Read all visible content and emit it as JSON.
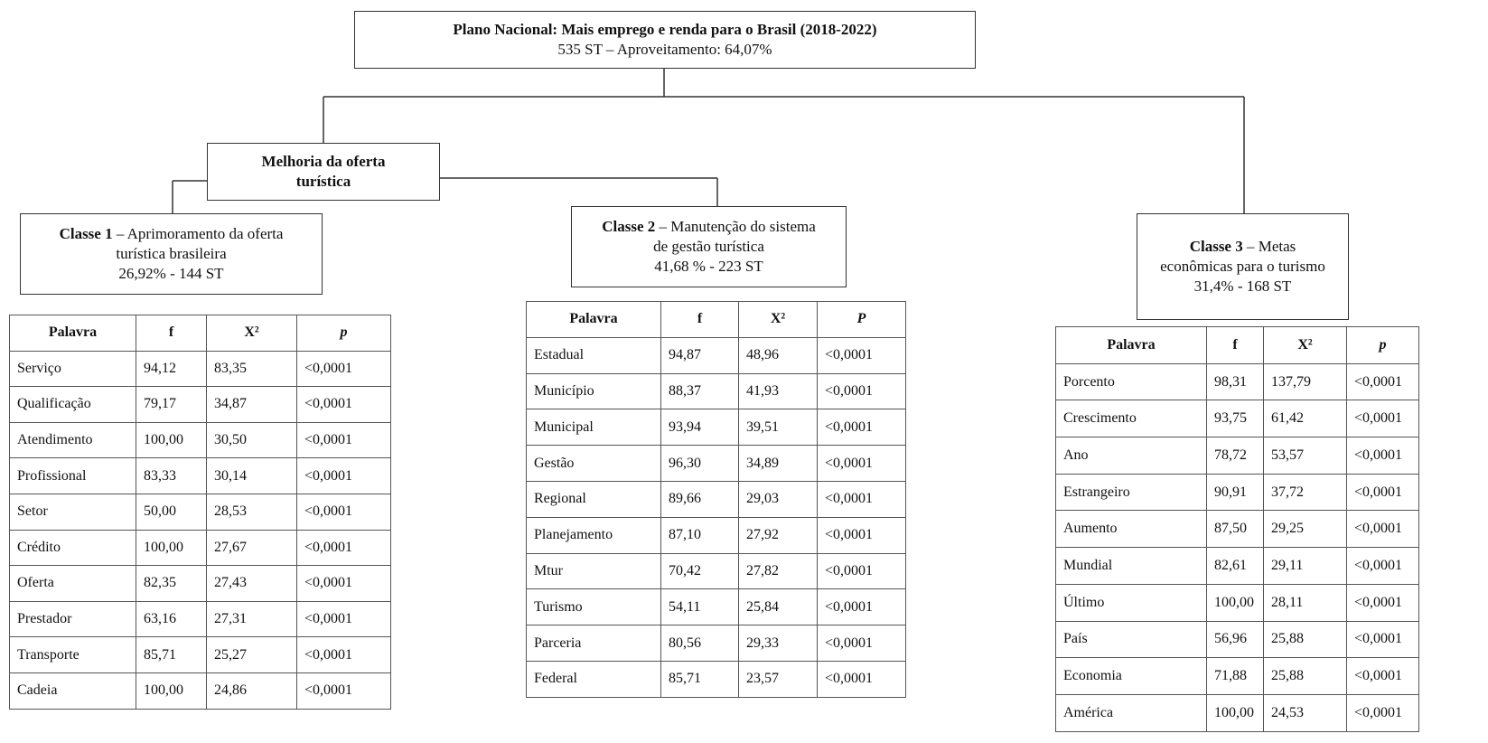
{
  "root": {
    "title": "Plano Nacional: Mais emprego e renda para o Brasil (2018-2022)",
    "subtitle": "535 ST – Aproveitamento: 64,07%"
  },
  "group": {
    "label": "Melhoria da oferta turística"
  },
  "classes": [
    {
      "name": "Classe 1",
      "description": " – Aprimoramento da oferta turística brasileira",
      "stats": "26,92% - 144 ST",
      "table": {
        "header": [
          "Palavra",
          "f",
          "X²",
          "p"
        ],
        "rows": [
          [
            "Serviço",
            "94,12",
            "83,35",
            "<0,0001"
          ],
          [
            "Qualificação",
            "79,17",
            "34,87",
            "<0,0001"
          ],
          [
            "Atendimento",
            "100,00",
            "30,50",
            "<0,0001"
          ],
          [
            "Profissional",
            "83,33",
            "30,14",
            "<0,0001"
          ],
          [
            "Setor",
            "50,00",
            "28,53",
            "<0,0001"
          ],
          [
            "Crédito",
            "100,00",
            "27,67",
            "<0,0001"
          ],
          [
            "Oferta",
            "82,35",
            "27,43",
            "<0,0001"
          ],
          [
            "Prestador",
            "63,16",
            "27,31",
            "<0,0001"
          ],
          [
            "Transporte",
            "85,71",
            "25,27",
            "<0,0001"
          ],
          [
            "Cadeia",
            "100,00",
            "24,86",
            "<0,0001"
          ]
        ]
      }
    },
    {
      "name": "Classe 2",
      "description": " – Manutenção do sistema de gestão turística",
      "stats": "41,68 % - 223 ST",
      "table": {
        "header": [
          "Palavra",
          "f",
          "X²",
          "P"
        ],
        "rows": [
          [
            "Estadual",
            "94,87",
            "48,96",
            "<0,0001"
          ],
          [
            "Município",
            "88,37",
            "41,93",
            "<0,0001"
          ],
          [
            "Municipal",
            "93,94",
            "39,51",
            "<0,0001"
          ],
          [
            "Gestão",
            "96,30",
            "34,89",
            "<0,0001"
          ],
          [
            "Regional",
            "89,66",
            "29,03",
            "<0,0001"
          ],
          [
            "Planejamento",
            "87,10",
            "27,92",
            "<0,0001"
          ],
          [
            "Mtur",
            "70,42",
            "27,82",
            "<0,0001"
          ],
          [
            "Turismo",
            "54,11",
            "25,84",
            "<0,0001"
          ],
          [
            "Parceria",
            "80,56",
            "29,33",
            "<0,0001"
          ],
          [
            "Federal",
            "85,71",
            "23,57",
            "<0,0001"
          ]
        ]
      }
    },
    {
      "name": "Classe 3",
      "description": " – Metas econômicas para o turismo",
      "stats": "31,4% - 168 ST",
      "table": {
        "header": [
          "Palavra",
          "f",
          "X²",
          "p"
        ],
        "rows": [
          [
            "Porcento",
            "98,31",
            "137,79",
            "<0,0001"
          ],
          [
            "Crescimento",
            "93,75",
            "61,42",
            "<0,0001"
          ],
          [
            "Ano",
            "78,72",
            "53,57",
            "<0,0001"
          ],
          [
            "Estrangeiro",
            "90,91",
            "37,72",
            "<0,0001"
          ],
          [
            "Aumento",
            "87,50",
            "29,25",
            "<0,0001"
          ],
          [
            "Mundial",
            "82,61",
            "29,11",
            "<0,0001"
          ],
          [
            "Último",
            "100,00",
            "28,11",
            "<0,0001"
          ],
          [
            "País",
            "56,96",
            "25,88",
            "<0,0001"
          ],
          [
            "Economia",
            "71,88",
            "25,88",
            "<0,0001"
          ],
          [
            "América",
            "100,00",
            "24,53",
            "<0,0001"
          ]
        ]
      }
    }
  ]
}
